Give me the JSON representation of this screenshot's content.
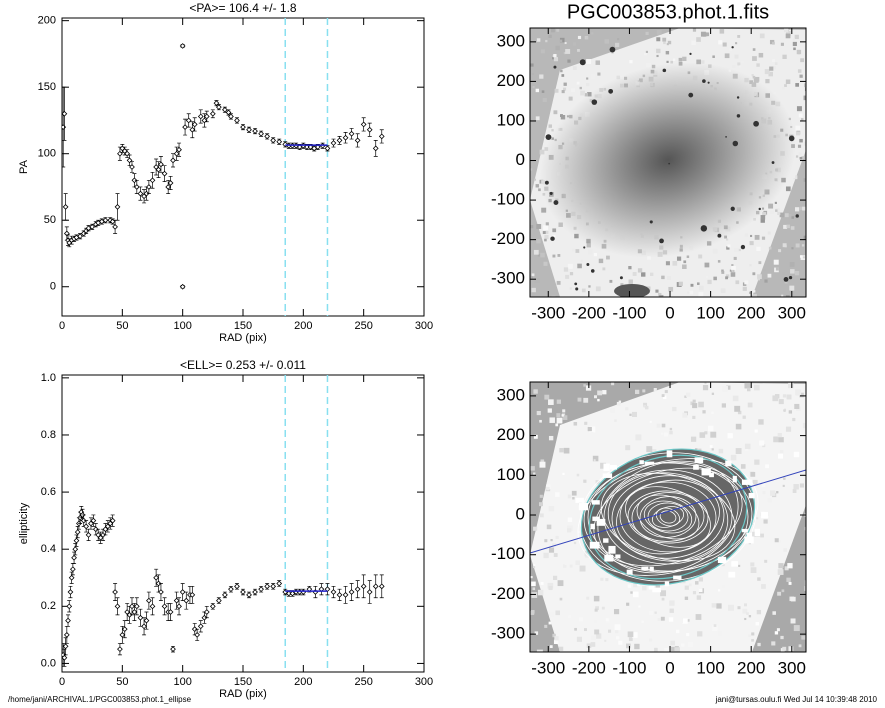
{
  "chart_data": [
    {
      "type": "scatter",
      "title": "<PA>= 106.4 +/-   1.8",
      "xlabel": "RAD (pix)",
      "ylabel": "PA",
      "xlim": [
        0,
        300
      ],
      "ylim": [
        -22,
        202
      ],
      "xticks": [
        0,
        50,
        100,
        150,
        200,
        250,
        300
      ],
      "yticks": [
        0,
        50,
        100,
        150,
        200
      ],
      "x": [
        1,
        2,
        3,
        4,
        5,
        6,
        8,
        10,
        12,
        15,
        18,
        20,
        22,
        25,
        28,
        30,
        33,
        36,
        40,
        42,
        44,
        46,
        48,
        50,
        52,
        54,
        56,
        58,
        60,
        62,
        65,
        68,
        70,
        72,
        75,
        78,
        80,
        82,
        85,
        88,
        90,
        92,
        95,
        97,
        100,
        100,
        102,
        105,
        108,
        110,
        115,
        118,
        120,
        125,
        128,
        130,
        135,
        138,
        140,
        145,
        150,
        155,
        160,
        165,
        170,
        175,
        180,
        185,
        188,
        191,
        194,
        197,
        200,
        203,
        206,
        209,
        212,
        216,
        220,
        225,
        230,
        235,
        240,
        245,
        250,
        255,
        260,
        265
      ],
      "values": [
        120,
        130,
        60,
        40,
        35,
        33,
        35,
        36,
        37,
        38,
        40,
        42,
        44,
        45,
        47,
        48,
        49,
        50,
        50,
        49,
        45,
        60,
        100,
        104,
        102,
        100,
        95,
        90,
        80,
        75,
        70,
        68,
        70,
        75,
        80,
        90,
        88,
        92,
        85,
        75,
        78,
        95,
        100,
        103,
        181,
        0,
        120,
        125,
        118,
        122,
        128,
        125,
        128,
        130,
        138,
        135,
        133,
        131,
        128,
        125,
        120,
        118,
        117,
        115,
        113,
        110,
        109,
        107,
        106,
        106,
        106,
        105,
        106,
        105,
        105,
        104,
        105,
        106,
        104,
        108,
        110,
        112,
        115,
        110,
        122,
        118,
        104,
        113
      ],
      "errors": [
        30,
        20,
        10,
        5,
        4,
        3,
        3,
        2,
        2,
        2,
        2,
        2,
        2,
        2,
        2,
        2,
        2,
        2,
        2,
        2,
        5,
        10,
        5,
        3,
        3,
        3,
        4,
        4,
        5,
        5,
        5,
        5,
        5,
        5,
        6,
        6,
        6,
        6,
        6,
        5,
        5,
        5,
        5,
        5,
        1,
        1,
        6,
        5,
        6,
        5,
        5,
        5,
        4,
        3,
        2,
        2,
        2,
        2,
        2,
        2,
        2,
        2,
        2,
        2,
        2,
        2,
        2,
        2,
        2,
        2,
        2,
        2,
        2,
        2,
        2,
        2,
        2,
        2,
        2,
        3,
        3,
        4,
        4,
        5,
        5,
        5,
        6,
        5
      ],
      "color": "#000000",
      "vlines": [
        185,
        220
      ],
      "vline_color": "#88e0f0",
      "fit": {
        "x": [
          185,
          220
        ],
        "y": [
          106.4,
          106.4
        ],
        "color": "#2222cc"
      }
    },
    {
      "type": "scatter",
      "title": "<ELL>= 0.253 +/-  0.011",
      "xlabel": "RAD (pix)",
      "ylabel": "ellipticity",
      "xlim": [
        0,
        300
      ],
      "ylim": [
        -0.03,
        1.01
      ],
      "xticks": [
        0,
        50,
        100,
        150,
        200,
        250,
        300
      ],
      "yticks": [
        {
          "value": 0,
          "label": "0.0"
        },
        0.2,
        0.4,
        0.6,
        0.8,
        {
          "value": 1,
          "label": "1.0"
        }
      ],
      "x": [
        1,
        2,
        3,
        4,
        5,
        6,
        7,
        8,
        9,
        10,
        11,
        12,
        13,
        14,
        15,
        16,
        17,
        18,
        20,
        22,
        24,
        26,
        28,
        30,
        32,
        34,
        36,
        38,
        40,
        42,
        44,
        46,
        48,
        50,
        52,
        54,
        56,
        58,
        60,
        62,
        65,
        68,
        70,
        72,
        75,
        78,
        80,
        82,
        85,
        88,
        90,
        92,
        95,
        97,
        100,
        103,
        106,
        108,
        110,
        112,
        115,
        118,
        120,
        125,
        130,
        135,
        140,
        145,
        150,
        155,
        160,
        165,
        170,
        175,
        180,
        185,
        188,
        191,
        194,
        197,
        200,
        205,
        210,
        215,
        220,
        225,
        230,
        235,
        240,
        245,
        250,
        255,
        260,
        265
      ],
      "values": [
        0.03,
        0.02,
        0.06,
        0.1,
        0.15,
        0.2,
        0.25,
        0.3,
        0.33,
        0.37,
        0.4,
        0.43,
        0.46,
        0.49,
        0.51,
        0.53,
        0.52,
        0.5,
        0.48,
        0.45,
        0.49,
        0.5,
        0.47,
        0.45,
        0.44,
        0.45,
        0.47,
        0.48,
        0.49,
        0.5,
        0.25,
        0.2,
        0.05,
        0.1,
        0.12,
        0.18,
        0.17,
        0.2,
        0.18,
        0.2,
        0.16,
        0.13,
        0.15,
        0.22,
        0.2,
        0.3,
        0.28,
        0.25,
        0.2,
        0.18,
        0.18,
        0.05,
        0.22,
        0.2,
        0.25,
        0.22,
        0.24,
        0.24,
        0.12,
        0.1,
        0.13,
        0.16,
        0.18,
        0.2,
        0.22,
        0.24,
        0.26,
        0.27,
        0.25,
        0.24,
        0.25,
        0.26,
        0.27,
        0.27,
        0.28,
        0.25,
        0.245,
        0.245,
        0.25,
        0.25,
        0.25,
        0.26,
        0.25,
        0.26,
        0.26,
        0.25,
        0.24,
        0.24,
        0.25,
        0.26,
        0.27,
        0.25,
        0.27,
        0.27
      ],
      "errors": [
        0.04,
        0.03,
        0.03,
        0.03,
        0.02,
        0.02,
        0.02,
        0.02,
        0.02,
        0.02,
        0.02,
        0.02,
        0.02,
        0.02,
        0.02,
        0.02,
        0.02,
        0.02,
        0.02,
        0.02,
        0.02,
        0.02,
        0.02,
        0.02,
        0.02,
        0.02,
        0.02,
        0.02,
        0.02,
        0.02,
        0.03,
        0.03,
        0.02,
        0.03,
        0.03,
        0.03,
        0.03,
        0.03,
        0.03,
        0.03,
        0.03,
        0.03,
        0.03,
        0.03,
        0.03,
        0.03,
        0.03,
        0.03,
        0.03,
        0.03,
        0.03,
        0.01,
        0.03,
        0.03,
        0.03,
        0.03,
        0.03,
        0.03,
        0.02,
        0.02,
        0.02,
        0.02,
        0.02,
        0.01,
        0.01,
        0.01,
        0.01,
        0.01,
        0.01,
        0.01,
        0.01,
        0.01,
        0.01,
        0.01,
        0.01,
        0.01,
        0.01,
        0.01,
        0.01,
        0.01,
        0.01,
        0.01,
        0.02,
        0.02,
        0.02,
        0.02,
        0.02,
        0.03,
        0.03,
        0.03,
        0.04,
        0.04,
        0.04,
        0.04
      ],
      "color": "#000000",
      "vlines": [
        185,
        220
      ],
      "vline_color": "#88e0f0",
      "fit": {
        "x": [
          185,
          220
        ],
        "y": [
          0.253,
          0.253
        ],
        "color": "#2222cc"
      }
    },
    {
      "type": "image",
      "title": "PGC003853.phot.1.fits",
      "xlim": [
        -345,
        335
      ],
      "ylim": [
        -345,
        335
      ],
      "xticks": [
        -300,
        -200,
        -100,
        0,
        100,
        200,
        300
      ],
      "yticks": [
        -300,
        -200,
        -100,
        0,
        100,
        200,
        300
      ]
    },
    {
      "type": "image-ellipses",
      "xlim": [
        -345,
        335
      ],
      "ylim": [
        -345,
        335
      ],
      "xticks": [
        -300,
        -200,
        -100,
        0,
        100,
        200,
        300
      ],
      "yticks": [
        -300,
        -200,
        -100,
        0,
        100,
        200,
        300
      ]
    }
  ],
  "footer": {
    "left": "/home/jani/ARCHIVAL.1/PGC003853.phot.1_ellipse",
    "right": "jani@tursas.oulu.fi  Wed Jul 14 10:39:48 2010"
  }
}
